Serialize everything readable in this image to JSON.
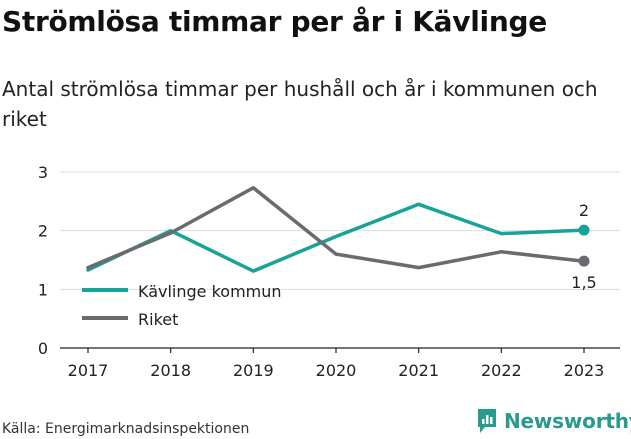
{
  "title": "Strömlösa timmar per år i Kävlinge",
  "subtitle": "Antal strömlösa timmar per hushåll och år i kommunen och riket",
  "source": "Källa: Energimarknadsinspektionen",
  "brand": "Newsworthy",
  "colors": {
    "kavlinge": "#17a398",
    "riket": "#6b6a71",
    "grid": "#dcdcdc",
    "brand": "#2a9a8c"
  },
  "chart_data": {
    "type": "line",
    "x": [
      2017,
      2018,
      2019,
      2020,
      2021,
      2022,
      2023
    ],
    "ylim": [
      0,
      3
    ],
    "yticks": [
      0,
      1,
      2,
      3
    ],
    "grid": true,
    "legend_position": "inside-left",
    "series": [
      {
        "name": "Kävlinge kommun",
        "values": [
          1.33,
          2.0,
          1.31,
          1.9,
          2.45,
          1.95,
          2.01
        ],
        "end_label": "2"
      },
      {
        "name": "Riket",
        "values": [
          1.37,
          1.96,
          2.73,
          1.6,
          1.37,
          1.64,
          1.48
        ],
        "end_label": "1,5"
      }
    ]
  }
}
